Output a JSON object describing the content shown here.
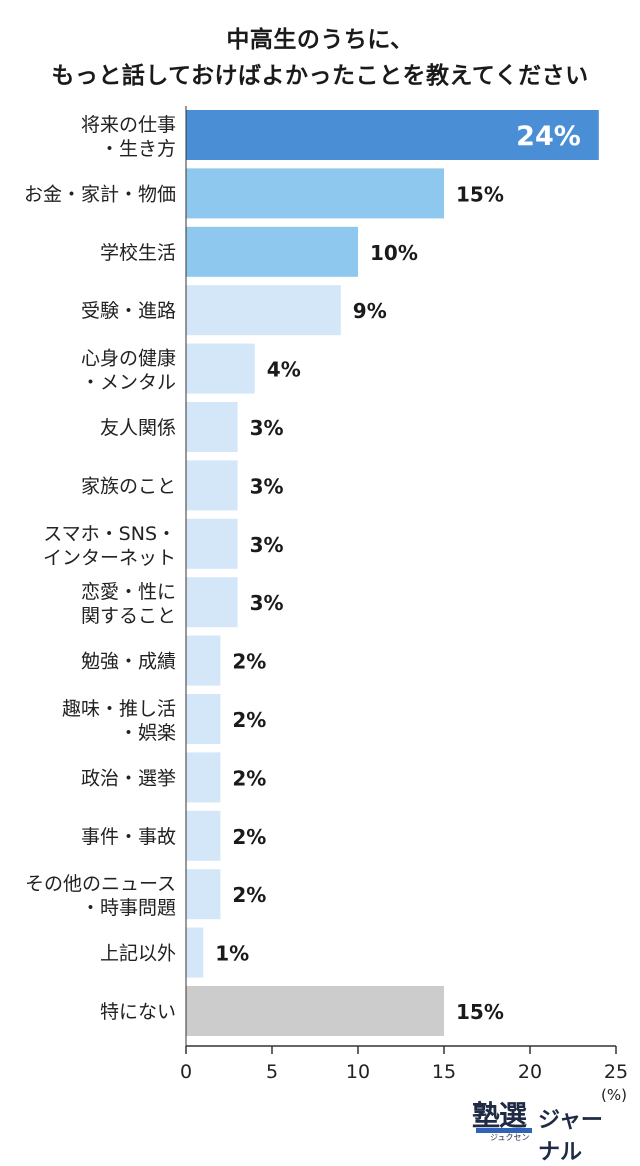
{
  "title": {
    "line1": "中高生のうちに、",
    "line2": "もっと話しておけばよかったことを教えてください"
  },
  "chart_data": {
    "type": "bar",
    "orientation": "horizontal",
    "categories": [
      [
        "将来の仕事",
        "・生き方"
      ],
      [
        "お金・家計・物価"
      ],
      [
        "学校生活"
      ],
      [
        "受験・進路"
      ],
      [
        "心身の健康",
        "・メンタル"
      ],
      [
        "友人関係"
      ],
      [
        "家族のこと"
      ],
      [
        "スマホ・SNS・",
        "インターネット"
      ],
      [
        "恋愛・性に",
        "関すること"
      ],
      [
        "勉強・成績"
      ],
      [
        "趣味・推し活",
        "・娯楽"
      ],
      [
        "政治・選挙"
      ],
      [
        "事件・事故"
      ],
      [
        "その他のニュース",
        "・時事問題"
      ],
      [
        "上記以外"
      ],
      [
        "特にない"
      ]
    ],
    "values": [
      24,
      15,
      10,
      9,
      4,
      3,
      3,
      3,
      3,
      2,
      2,
      2,
      2,
      2,
      1,
      15
    ],
    "value_labels": [
      "24%",
      "15%",
      "10%",
      "9%",
      "4%",
      "3%",
      "3%",
      "3%",
      "3%",
      "2%",
      "2%",
      "2%",
      "2%",
      "2%",
      "1%",
      "15%"
    ],
    "bar_colors": [
      "#4a8fd6",
      "#8fc8ee",
      "#8fc8ee",
      "#d3e7f8",
      "#d3e7f8",
      "#d3e7f8",
      "#d3e7f8",
      "#d3e7f8",
      "#d3e7f8",
      "#d3e7f8",
      "#d3e7f8",
      "#d3e7f8",
      "#d3e7f8",
      "#d3e7f8",
      "#d3e7f8",
      "#cccccc"
    ],
    "xlim": [
      0,
      25
    ],
    "x_ticks": [
      0,
      5,
      10,
      15,
      20,
      25
    ],
    "x_unit": "(%)",
    "grid": false,
    "legend": "none"
  },
  "logo": {
    "kanji": "塾選",
    "kana": "ジュクセン",
    "text": "ジャーナル"
  }
}
